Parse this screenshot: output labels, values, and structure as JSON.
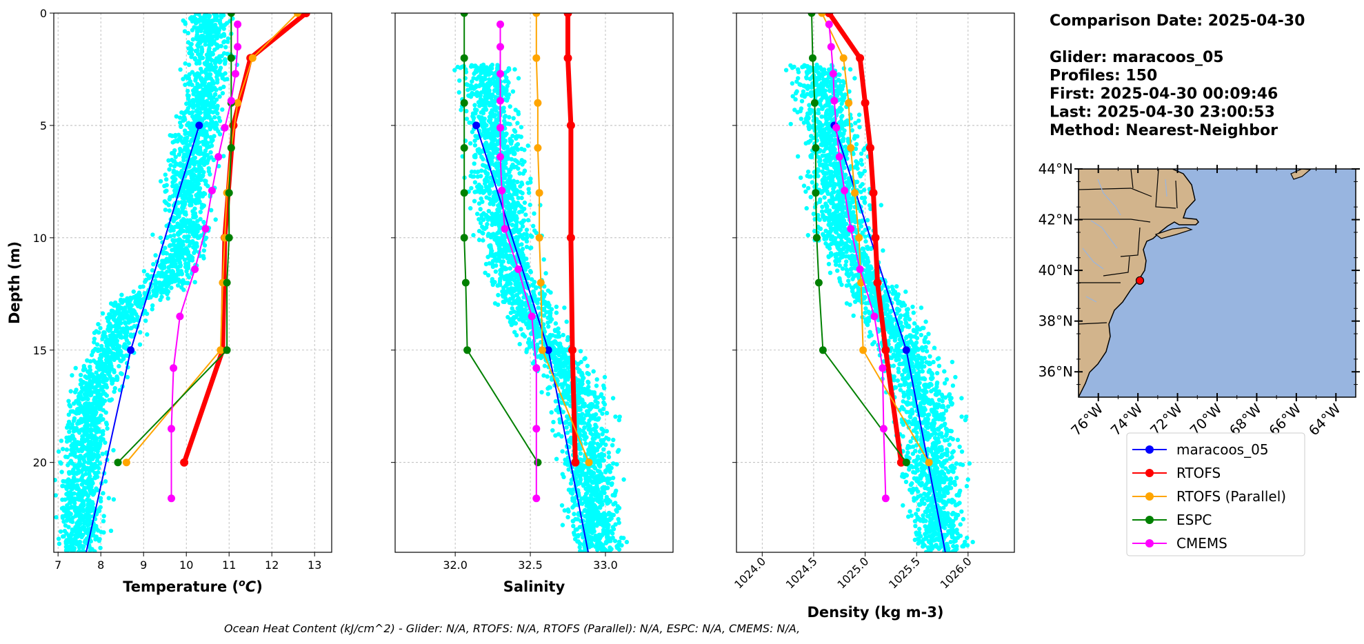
{
  "info": {
    "lines": [
      "Comparison Date: 2025-04-30",
      "",
      "Glider: maracoos_05",
      "Profiles: 150",
      "First: 2025-04-30 00:09:46",
      "Last: 2025-04-30 23:00:53",
      "Method: Nearest-Neighbor"
    ]
  },
  "footer": "Ocean Heat Content (kJ/cm^2) - Glider: N/A,  RTOFS: N/A,  RTOFS (Parallel): N/A,  ESPC: N/A,  CMEMS: N/A,",
  "colors": {
    "scatter": "#00ffff",
    "maracoos_05": "#0000ff",
    "RTOFS": "#ff0000",
    "RTOFS (Parallel)": "#ffa500",
    "ESPC": "#008000",
    "CMEMS": "#ff00ff",
    "land": "#d2b48c",
    "ocean": "#98b5e0",
    "marker": "#ff0000"
  },
  "legend": [
    "maracoos_05",
    "RTOFS",
    "RTOFS (Parallel)",
    "ESPC",
    "CMEMS"
  ],
  "map": {
    "lat_ticks": [
      "44°N",
      "42°N",
      "40°N",
      "38°N",
      "36°N"
    ],
    "lon_ticks": [
      "76°W",
      "74°W",
      "72°W",
      "70°W",
      "68°W",
      "66°W",
      "64°W"
    ],
    "lon_range": [
      -77,
      -63
    ],
    "lat_range": [
      35,
      44
    ],
    "glider_location": [
      -73.9,
      39.6
    ]
  },
  "chart_data": [
    {
      "type": "line",
      "name": "temperature",
      "xlabel": "Temperature (°C)",
      "ylabel": "Depth (m)",
      "xlim": [
        6.9,
        13.4
      ],
      "ylim": [
        24,
        0
      ],
      "xticks": [
        "7",
        "8",
        "9",
        "10",
        "11",
        "12",
        "13"
      ],
      "yticks": [
        "0",
        "5",
        "10",
        "15",
        "20"
      ],
      "grid": true,
      "glider_scatter": {
        "depth_range": [
          0,
          24
        ],
        "profile_points": [
          [
            2.5,
            10.5
          ],
          [
            5,
            10.3
          ],
          [
            8,
            10.0
          ],
          [
            10,
            10.0
          ],
          [
            12,
            9.6
          ],
          [
            13,
            8.6
          ],
          [
            15,
            8.3
          ],
          [
            17,
            7.8
          ],
          [
            20,
            7.6
          ],
          [
            24,
            7.5
          ]
        ],
        "spread": 1.3
      },
      "series": [
        {
          "name": "maracoos_05",
          "depth": [
            5,
            15,
            24.5
          ],
          "values": [
            10.3,
            8.7,
            7.6
          ]
        },
        {
          "name": "RTOFS",
          "depth": [
            0,
            2,
            5,
            10,
            15,
            20
          ],
          "values": [
            12.8,
            11.5,
            11.1,
            10.9,
            10.85,
            9.95
          ]
        },
        {
          "name": "RTOFS (Parallel)",
          "depth": [
            0,
            2,
            4,
            6,
            8,
            10,
            12,
            15,
            20
          ],
          "values": [
            12.6,
            11.55,
            11.2,
            11.05,
            10.95,
            10.9,
            10.85,
            10.8,
            8.6
          ]
        },
        {
          "name": "ESPC",
          "depth": [
            0,
            2,
            4,
            6,
            8,
            10,
            12,
            15,
            20
          ],
          "values": [
            11.05,
            11.05,
            11.05,
            11.05,
            11.0,
            11.0,
            10.95,
            10.95,
            8.4
          ]
        },
        {
          "name": "CMEMS",
          "depth": [
            0.5,
            1.5,
            2.7,
            3.9,
            5.1,
            6.4,
            7.9,
            9.6,
            11.4,
            13.5,
            15.8,
            18.5,
            21.6
          ],
          "values": [
            11.2,
            11.2,
            11.15,
            11.05,
            10.9,
            10.75,
            10.6,
            10.45,
            10.2,
            9.85,
            9.7,
            9.65,
            9.65
          ]
        }
      ]
    },
    {
      "type": "line",
      "name": "salinity",
      "xlabel": "Salinity",
      "xlim": [
        31.6,
        33.45
      ],
      "ylim": [
        24,
        0
      ],
      "xticks": [
        "32.0",
        "32.5",
        "33.0"
      ],
      "grid": true,
      "glider_scatter": {
        "depth_range": [
          2.3,
          24
        ],
        "profile_points": [
          [
            2.5,
            32.2
          ],
          [
            5,
            32.25
          ],
          [
            8,
            32.3
          ],
          [
            10,
            32.35
          ],
          [
            12,
            32.4
          ],
          [
            14,
            32.55
          ],
          [
            16,
            32.75
          ],
          [
            18,
            32.85
          ],
          [
            20,
            32.9
          ],
          [
            24,
            32.95
          ]
        ],
        "spread": 0.45
      },
      "series": [
        {
          "name": "maracoos_05",
          "depth": [
            5,
            15,
            24.5
          ],
          "values": [
            32.14,
            32.62,
            32.9
          ]
        },
        {
          "name": "RTOFS",
          "depth": [
            0,
            2,
            5,
            10,
            15,
            20
          ],
          "values": [
            32.75,
            32.75,
            32.77,
            32.77,
            32.78,
            32.8
          ]
        },
        {
          "name": "RTOFS (Parallel)",
          "depth": [
            0,
            2,
            4,
            6,
            8,
            10,
            12,
            15,
            20
          ],
          "values": [
            32.54,
            32.54,
            32.55,
            32.55,
            32.56,
            32.56,
            32.57,
            32.58,
            32.89
          ]
        },
        {
          "name": "ESPC",
          "depth": [
            0,
            2,
            4,
            6,
            8,
            10,
            12,
            15,
            20
          ],
          "values": [
            32.06,
            32.06,
            32.06,
            32.06,
            32.06,
            32.06,
            32.07,
            32.08,
            32.55
          ]
        },
        {
          "name": "CMEMS",
          "depth": [
            0.5,
            1.5,
            2.7,
            3.9,
            5.1,
            6.4,
            7.9,
            9.6,
            11.4,
            13.5,
            15.8,
            18.5,
            21.6
          ],
          "values": [
            32.3,
            32.3,
            32.3,
            32.3,
            32.3,
            32.3,
            32.31,
            32.33,
            32.42,
            32.51,
            32.54,
            32.54,
            32.54
          ]
        }
      ]
    },
    {
      "type": "line",
      "name": "density",
      "xlabel": "Density (kg m-3)",
      "xlim": [
        1023.75,
        1026.45
      ],
      "ylim": [
        24,
        0
      ],
      "xticks": [
        "1024.0",
        "1024.5",
        "1025.0",
        "1025.5",
        "1026.0"
      ],
      "grid": true,
      "glider_scatter": {
        "depth_range": [
          2.3,
          24
        ],
        "profile_points": [
          [
            2.5,
            1024.55
          ],
          [
            5,
            1024.65
          ],
          [
            8,
            1024.75
          ],
          [
            10,
            1024.8
          ],
          [
            12,
            1025.0
          ],
          [
            14,
            1025.3
          ],
          [
            16,
            1025.5
          ],
          [
            18,
            1025.6
          ],
          [
            20,
            1025.65
          ],
          [
            24,
            1025.75
          ]
        ],
        "spread": 0.7
      },
      "series": [
        {
          "name": "maracoos_05",
          "depth": [
            5,
            15,
            24.5
          ],
          "values": [
            1024.7,
            1025.4,
            1025.8
          ]
        },
        {
          "name": "RTOFS",
          "depth": [
            0,
            2,
            4,
            6,
            8,
            10,
            12,
            15,
            20
          ],
          "values": [
            1024.65,
            1024.95,
            1025.0,
            1025.05,
            1025.08,
            1025.1,
            1025.12,
            1025.2,
            1025.35
          ]
        },
        {
          "name": "RTOFS (Parallel)",
          "depth": [
            0,
            2,
            4,
            6,
            8,
            10,
            12,
            15,
            20
          ],
          "values": [
            1024.58,
            1024.79,
            1024.84,
            1024.86,
            1024.9,
            1024.94,
            1024.96,
            1024.98,
            1025.62
          ]
        },
        {
          "name": "ESPC",
          "depth": [
            0,
            2,
            4,
            6,
            8,
            10,
            12,
            15,
            20
          ],
          "values": [
            1024.48,
            1024.49,
            1024.51,
            1024.52,
            1024.52,
            1024.53,
            1024.55,
            1024.59,
            1025.4
          ]
        },
        {
          "name": "CMEMS",
          "depth": [
            0.5,
            1.5,
            2.7,
            3.9,
            5.1,
            6.4,
            7.9,
            9.6,
            11.4,
            13.5,
            15.8,
            18.5,
            21.6
          ],
          "values": [
            1024.65,
            1024.67,
            1024.69,
            1024.7,
            1024.72,
            1024.75,
            1024.8,
            1024.86,
            1024.95,
            1025.09,
            1025.17,
            1025.18,
            1025.2
          ]
        }
      ]
    }
  ]
}
